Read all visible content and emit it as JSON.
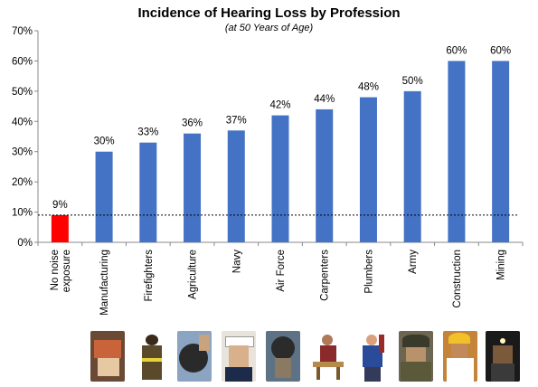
{
  "chart_data": {
    "type": "bar",
    "title": "Incidence of Hearing Loss by Profession",
    "subtitle": "(at 50 Years of Age)",
    "categories": [
      "No noise\nexposure",
      "Manufacturing",
      "Firefighters",
      "Agriculture",
      "Navy",
      "Air Force",
      "Carpenters",
      "Plumbers",
      "Army",
      "Construction",
      "Mining"
    ],
    "values": [
      9,
      30,
      33,
      36,
      37,
      42,
      44,
      48,
      50,
      60,
      60
    ],
    "value_labels": [
      "9%",
      "30%",
      "33%",
      "36%",
      "37%",
      "42%",
      "44%",
      "48%",
      "50%",
      "60%",
      "60%"
    ],
    "ylim": [
      0,
      70
    ],
    "yticks": [
      "0%",
      "10%",
      "20%",
      "30%",
      "40%",
      "50%",
      "60%",
      "70%"
    ],
    "reference_line": 9,
    "colors": {
      "highlight": "#ff0000",
      "bar": "#4472c4",
      "reference": "#000000"
    },
    "grid": false,
    "legend": "none"
  }
}
